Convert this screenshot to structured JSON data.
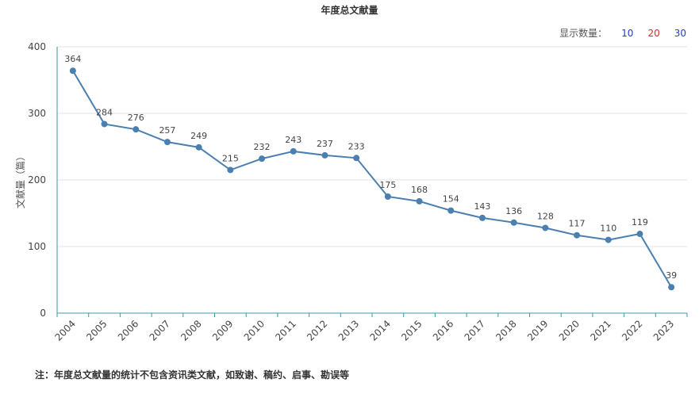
{
  "chart_data": {
    "type": "line",
    "title": "年度总文献量",
    "ylabel": "文献量（篇）",
    "xlabel": "",
    "categories": [
      "2004",
      "2005",
      "2006",
      "2007",
      "2008",
      "2009",
      "2010",
      "2011",
      "2012",
      "2013",
      "2014",
      "2015",
      "2016",
      "2017",
      "2018",
      "2019",
      "2020",
      "2021",
      "2022",
      "2023"
    ],
    "series": [
      {
        "values": [
          364,
          284,
          276,
          257,
          249,
          215,
          232,
          243,
          237,
          233,
          175,
          168,
          154,
          143,
          136,
          128,
          117,
          110,
          119,
          39
        ]
      }
    ],
    "ylim": [
      0,
      400
    ],
    "yticks": [
      0,
      100,
      200,
      300,
      400
    ],
    "grid": true,
    "line_color": "#4a7fb0"
  },
  "display_count": {
    "label": "显示数量：",
    "options": [
      {
        "label": "10",
        "color": "#1f3fc4"
      },
      {
        "label": "20",
        "color": "#d42a2a"
      },
      {
        "label": "30",
        "color": "#1f3fc4"
      }
    ]
  },
  "note": "注：年度总文献量的统计不包含资讯类文献，如致谢、稿约、启事、勘误等"
}
